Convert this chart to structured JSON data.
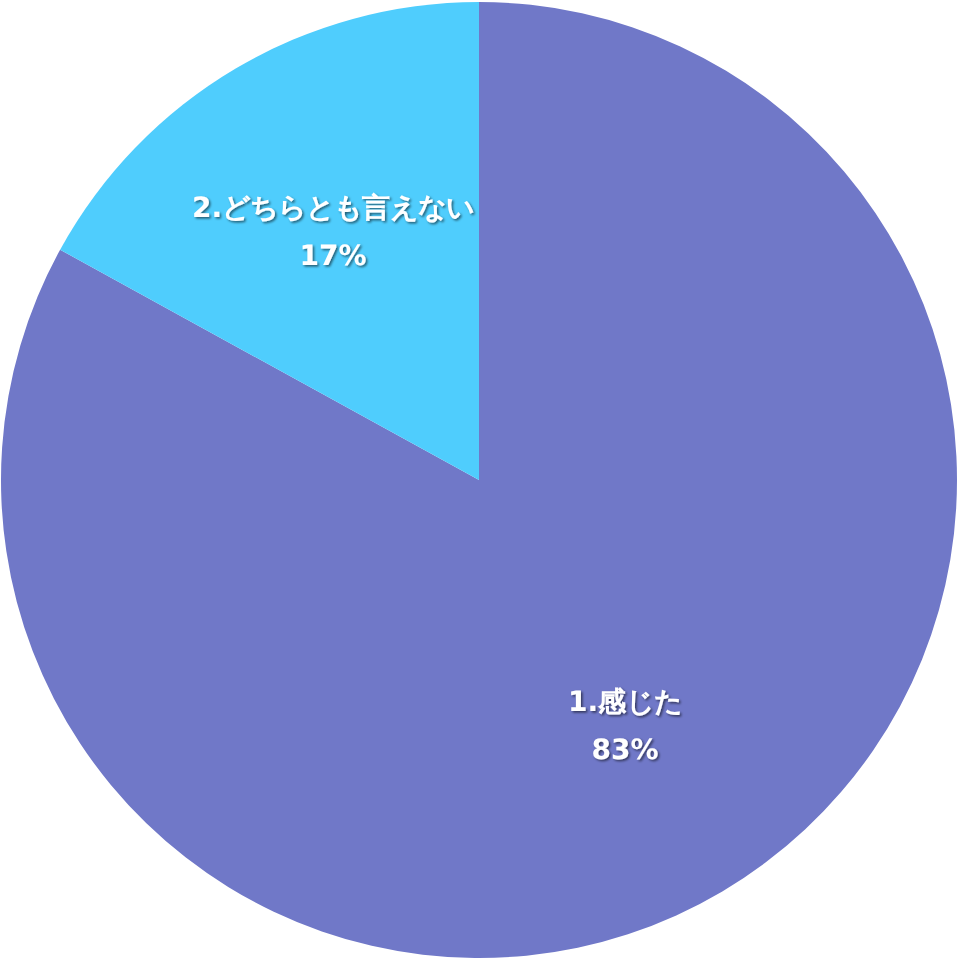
{
  "chart_data": {
    "type": "pie",
    "categories": [
      "1.感じた",
      "2.どちらとも言えない"
    ],
    "values": [
      83,
      17
    ],
    "colors": [
      "#7078c8",
      "#4fcdfd"
    ],
    "value_labels": [
      "83%",
      "17%"
    ],
    "legend": false
  }
}
